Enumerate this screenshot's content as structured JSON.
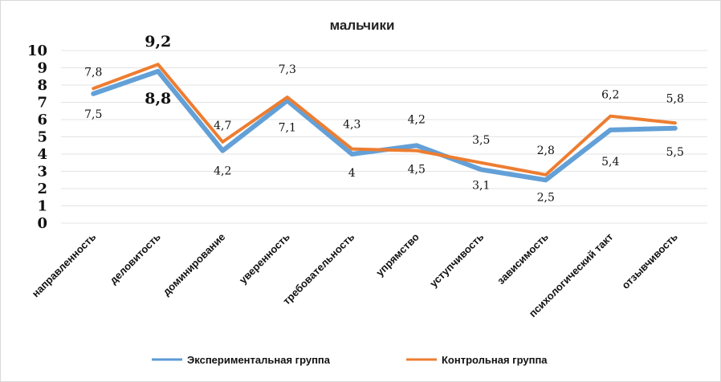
{
  "chart_data": {
    "type": "line",
    "title": "мальчики",
    "xlabel": "",
    "ylabel": "",
    "ylim": [
      0,
      10
    ],
    "yticks": [
      "0",
      "1",
      "2",
      "3",
      "4",
      "5",
      "6",
      "7",
      "8",
      "9",
      "10"
    ],
    "grid": true,
    "legend_position": "bottom",
    "categories": [
      "направленность",
      "деловитость",
      "доминирование",
      "уверенность",
      "требовательность",
      "упрямство",
      "уступчивость",
      "зависимость",
      "психологический такт",
      "отзывчивость"
    ],
    "series": [
      {
        "name": "Экспериментальная группа",
        "color": "#5b9bd5",
        "values": [
          7.5,
          8.8,
          4.2,
          7.1,
          4.0,
          4.5,
          3.1,
          2.5,
          5.4,
          5.5
        ],
        "labels": [
          "7,5",
          "8,8",
          "4,2",
          "7,1",
          "4",
          "4,5",
          "3,1",
          "2,5",
          "5,4",
          "5,5"
        ]
      },
      {
        "name": "Контрольная группа",
        "color": "#ed7d31",
        "values": [
          7.8,
          9.2,
          4.7,
          7.3,
          4.3,
          4.2,
          3.5,
          2.8,
          6.2,
          5.8
        ],
        "labels": [
          "7,8",
          "9,2",
          "4,7",
          "7,3",
          "4,3",
          "4,2",
          "3,5",
          "2,8",
          "6,2",
          "5,8"
        ]
      }
    ]
  }
}
